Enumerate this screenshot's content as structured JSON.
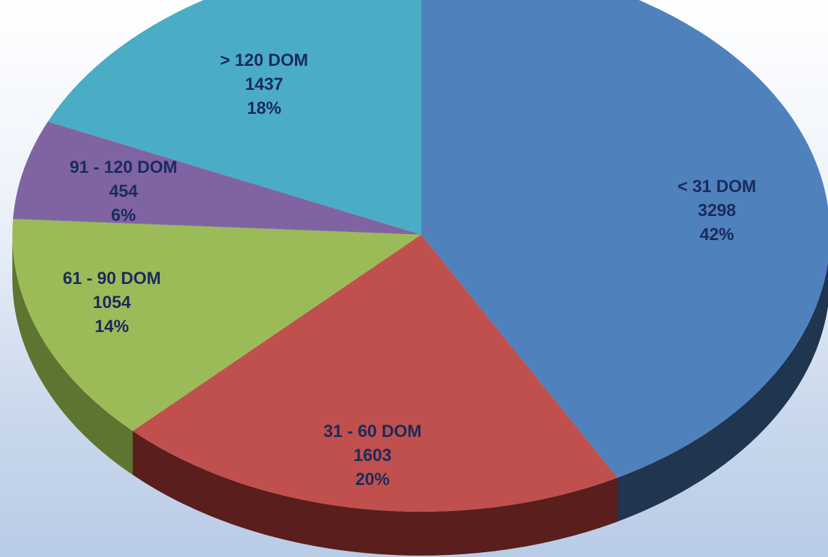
{
  "chart_data": {
    "type": "pie",
    "style": "3d",
    "title": "",
    "start_angle_deg": 0,
    "direction": "clockwise",
    "slices": [
      {
        "label": "< 31 DOM",
        "value": 3298,
        "percent": "42%",
        "color": "#4f81bd",
        "side_color": "#1f3550"
      },
      {
        "label": "31 - 60 DOM",
        "value": 1603,
        "percent": "20%",
        "color": "#c0504d",
        "side_color": "#5a1e1c"
      },
      {
        "label": "61 - 90 DOM",
        "value": 1054,
        "percent": "14%",
        "color": "#9bbb59",
        "side_color": "#5d7530"
      },
      {
        "label": "91 - 120 DOM",
        "value": 454,
        "percent": "6%",
        "color": "#8064a2",
        "side_color": "#4a3a60"
      },
      {
        "label": "> 120 DOM",
        "value": 1437,
        "percent": "18%",
        "color": "#4bacc6",
        "side_color": "#2a6577"
      }
    ]
  }
}
